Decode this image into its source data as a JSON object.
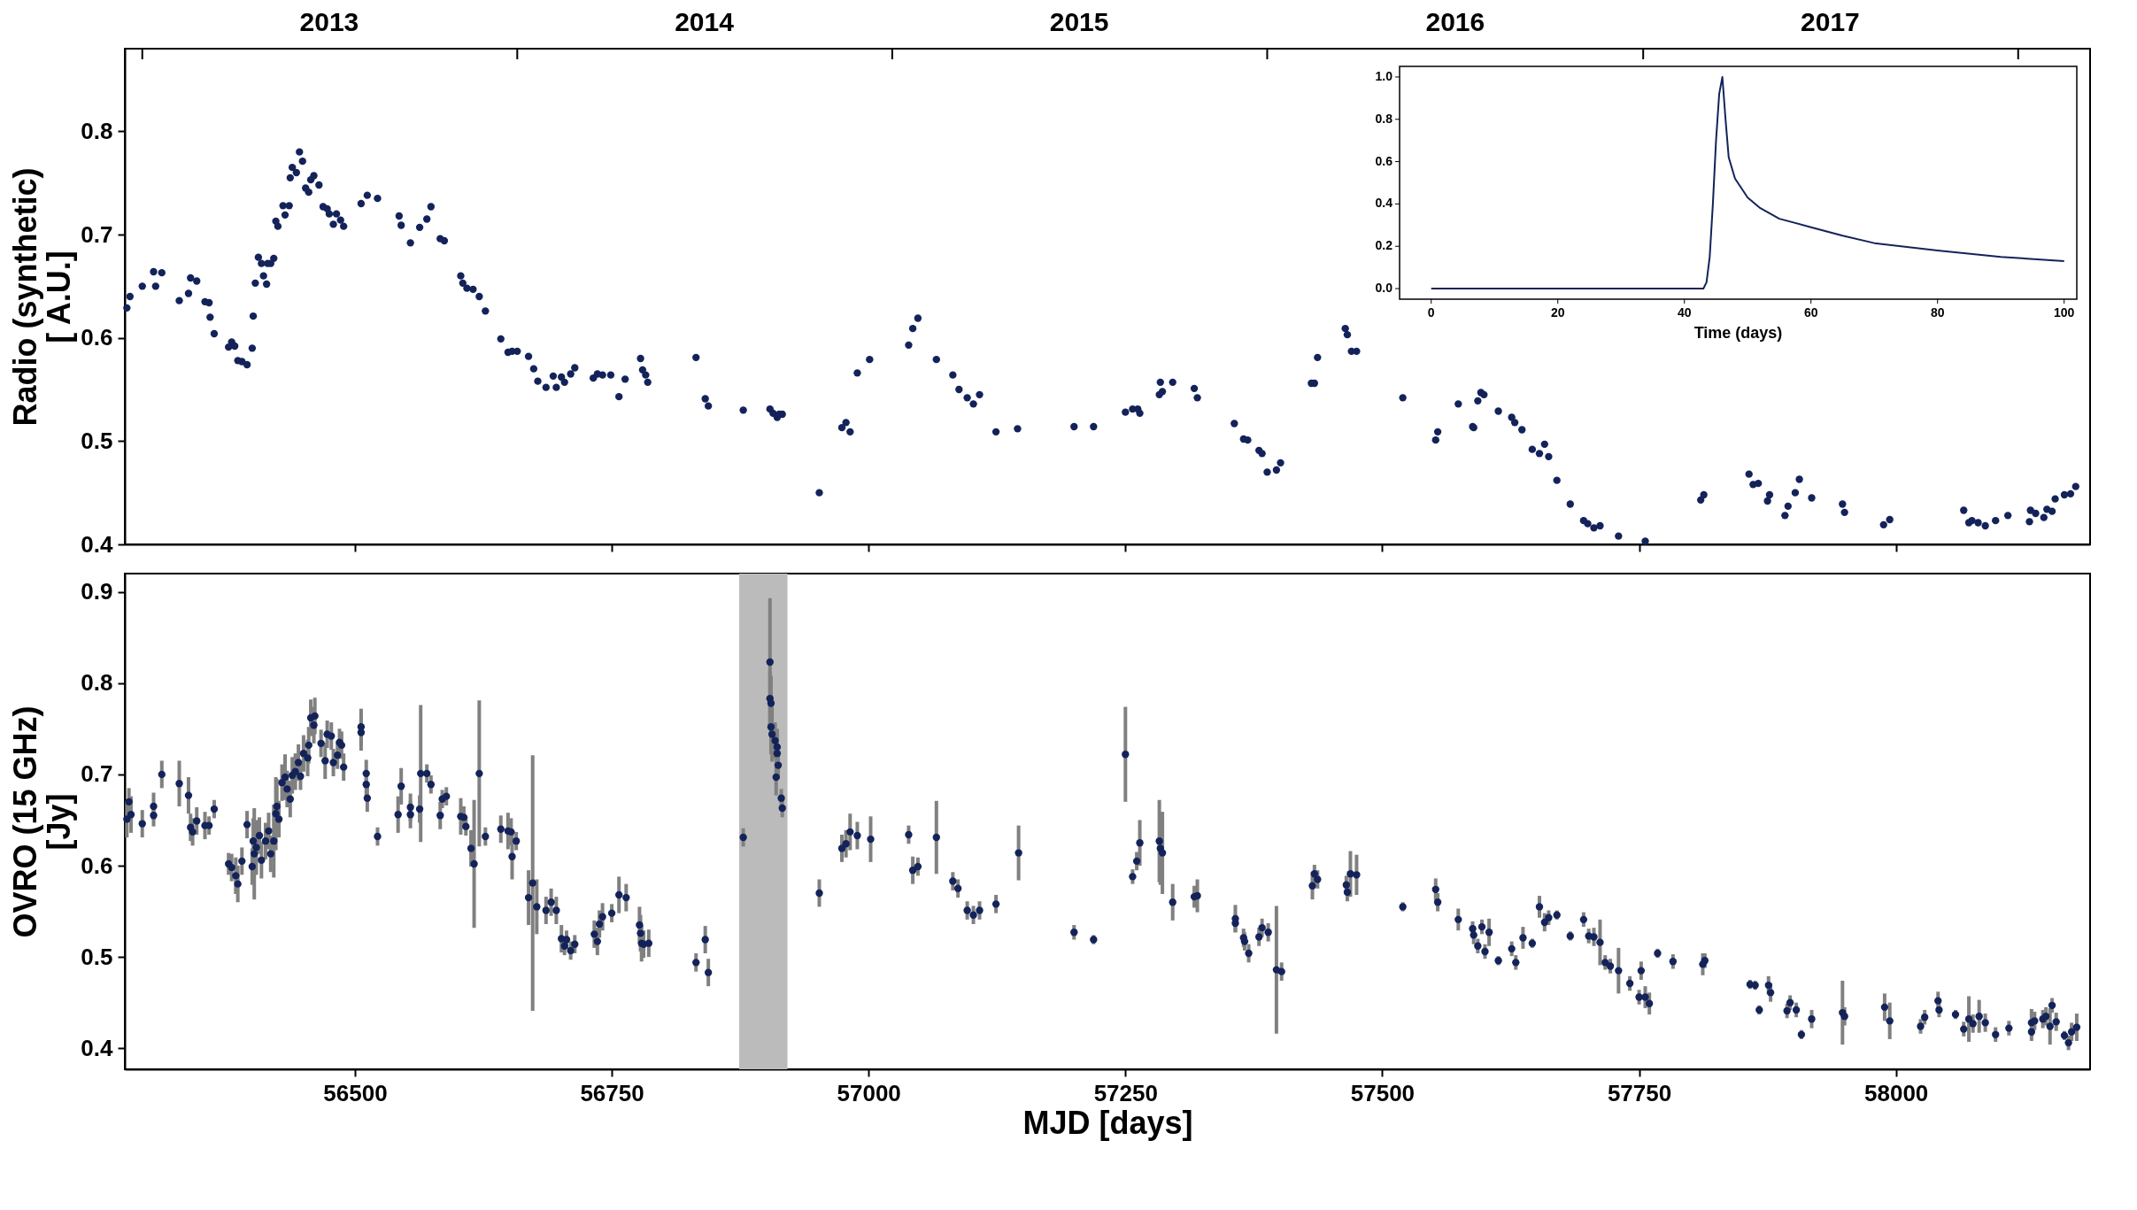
{
  "chart_data": [
    {
      "type": "scatter",
      "ylabel": "Radio (synthetic)\n[ A.U.]",
      "marker": "circle",
      "grid": false,
      "tick_labels": "y",
      "xlim": [
        56276,
        58189
      ],
      "ylim": [
        0.4,
        0.88
      ],
      "yticks": [
        0.4,
        0.5,
        0.6,
        0.7,
        0.8
      ],
      "xticks": [
        {
          "value": 56500,
          "label": null
        },
        {
          "value": 56750,
          "label": null
        },
        {
          "value": 57000,
          "label": null
        },
        {
          "value": 57250,
          "label": null
        },
        {
          "value": 57500,
          "label": null
        },
        {
          "value": 57750,
          "label": null
        },
        {
          "value": 58000,
          "label": null
        }
      ],
      "x2lim": [
        "2012-12-15",
        "2018-03-12"
      ],
      "x2ticks": [
        {
          "value": "2013-01-01",
          "label": null
        },
        {
          "value": "2013-07-02",
          "label": "2013"
        },
        {
          "value": "2014-01-01",
          "label": null
        },
        {
          "value": "2014-07-02",
          "label": "2014"
        },
        {
          "value": "2015-01-01",
          "label": null
        },
        {
          "value": "2015-07-02",
          "label": "2015"
        },
        {
          "value": "2016-01-01",
          "label": null
        },
        {
          "value": "2016-07-02",
          "label": "2016"
        },
        {
          "value": "2017-01-01",
          "label": null
        },
        {
          "value": "2017-07-02",
          "label": "2017"
        },
        {
          "value": "2018-01-01",
          "label": null
        }
      ],
      "x": [
        56278,
        56281,
        56293,
        56304,
        56306,
        56312,
        56329,
        56338,
        56340,
        56346,
        56354,
        56358,
        56359,
        56363,
        56377,
        56380,
        56383,
        56386,
        56390,
        56395,
        56400,
        56401,
        56403,
        56406,
        56409,
        56411,
        56414,
        56415,
        56418,
        56421,
        56423,
        56425,
        56430,
        56432,
        56436,
        56437,
        56439,
        56443,
        56446,
        56449,
        56452,
        56455,
        56457,
        56460,
        56465,
        56469,
        56473,
        56475,
        56479,
        56482,
        56486,
        56489,
        56506,
        56512,
        56522,
        56543,
        56545,
        56554,
        56563,
        56570,
        56574,
        56583,
        56587,
        56603,
        56605,
        56609,
        56615,
        56621,
        56627,
        56642,
        56649,
        56653,
        56658,
        56669,
        56674,
        56678,
        56686,
        56693,
        56696,
        56701,
        56704,
        56710,
        56714,
        56732,
        56736,
        56741,
        56749,
        56757,
        56763,
        56778,
        56780,
        56783,
        56785,
        56832,
        56841,
        56844,
        56878,
        56904,
        56907,
        56911,
        56913,
        56916,
        56952,
        56974,
        56978,
        56982,
        56989,
        57001,
        57039,
        57043,
        57048,
        57066,
        57082,
        57088,
        57096,
        57102,
        57108,
        57124,
        57145,
        57200,
        57219,
        57250,
        57257,
        57262,
        57264,
        57283,
        57286,
        57284,
        57296,
        57317,
        57320,
        57356,
        57365,
        57369,
        57380,
        57383,
        57388,
        57397,
        57401,
        57431,
        57434,
        57437,
        57464,
        57466,
        57470,
        57475,
        57520,
        57552,
        57554,
        57574,
        57588,
        57589,
        57593,
        57596,
        57599,
        57613,
        57626,
        57629,
        57636,
        57646,
        57653,
        57658,
        57662,
        57670,
        57683,
        57696,
        57700,
        57706,
        57712,
        57730,
        57756,
        57810,
        57813,
        57857,
        57861,
        57866,
        57875,
        57877,
        57892,
        57895,
        57902,
        57906,
        57918,
        57948,
        57950,
        57988,
        57994,
        58066,
        58071,
        58074,
        58080,
        58087,
        58097,
        58109,
        58130,
        58131,
        58136,
        58144,
        58147,
        58152,
        58155,
        58164,
        58170,
        58175
      ],
      "series": [
        {
          "color": "#13235a",
          "values": [
            0.629,
            0.64,
            0.65,
            0.664,
            0.65,
            0.663,
            0.636,
            0.643,
            0.658,
            0.655,
            0.635,
            0.634,
            0.62,
            0.604,
            0.591,
            0.596,
            0.592,
            0.578,
            0.577,
            0.574,
            0.59,
            0.621,
            0.653,
            0.678,
            0.672,
            0.66,
            0.652,
            0.672,
            0.672,
            0.677,
            0.713,
            0.708,
            0.728,
            0.719,
            0.728,
            0.755,
            0.765,
            0.76,
            0.78,
            0.771,
            0.745,
            0.741,
            0.753,
            0.757,
            0.748,
            0.727,
            0.725,
            0.72,
            0.71,
            0.72,
            0.714,
            0.708,
            0.73,
            0.738,
            0.735,
            0.718,
            0.709,
            0.692,
            0.707,
            0.715,
            0.727,
            0.696,
            0.694,
            0.66,
            0.653,
            0.648,
            0.647,
            0.64,
            0.626,
            0.599,
            0.586,
            0.587,
            0.587,
            0.582,
            0.57,
            0.558,
            0.552,
            0.563,
            0.552,
            0.562,
            0.557,
            0.565,
            0.571,
            0.561,
            0.565,
            0.564,
            0.564,
            0.543,
            0.56,
            0.58,
            0.569,
            0.564,
            0.557,
            0.581,
            0.541,
            0.534,
            0.53,
            0.531,
            0.527,
            0.523,
            0.526,
            0.526,
            0.45,
            0.513,
            0.518,
            0.509,
            0.566,
            0.579,
            0.593,
            0.609,
            0.619,
            0.579,
            0.564,
            0.55,
            0.542,
            0.536,
            0.545,
            0.509,
            0.512,
            0.514,
            0.514,
            0.528,
            0.531,
            0.531,
            0.527,
            0.545,
            0.548,
            0.557,
            0.557,
            0.551,
            0.542,
            0.517,
            0.502,
            0.501,
            0.491,
            0.488,
            0.47,
            0.472,
            0.479,
            0.556,
            0.556,
            0.581,
            0.609,
            0.603,
            0.587,
            0.587,
            0.542,
            0.501,
            0.509,
            0.536,
            0.514,
            0.513,
            0.539,
            0.547,
            0.545,
            0.529,
            0.523,
            0.518,
            0.511,
            0.492,
            0.488,
            0.497,
            0.485,
            0.462,
            0.439,
            0.423,
            0.42,
            0.416,
            0.418,
            0.408,
            0.403,
            0.443,
            0.448,
            0.468,
            0.458,
            0.459,
            0.442,
            0.448,
            0.428,
            0.437,
            0.45,
            0.463,
            0.445,
            0.439,
            0.431,
            0.419,
            0.424,
            0.433,
            0.421,
            0.423,
            0.421,
            0.418,
            0.423,
            0.428,
            0.422,
            0.433,
            0.43,
            0.426,
            0.434,
            0.432,
            0.444,
            0.448,
            0.449,
            0.456
          ]
        }
      ]
    },
    {
      "type": "scatter",
      "xlabel": "MJD [days]",
      "ylabel": "OVRO (15 GHz)\n[Jy]",
      "marker": "circle",
      "grid": false,
      "xlim": [
        56276,
        58189
      ],
      "ylim": [
        0.377,
        0.92
      ],
      "xticks": [
        56500,
        56750,
        57000,
        57250,
        57500,
        57750,
        58000
      ],
      "yticks": [
        0.4,
        0.5,
        0.6,
        0.7,
        0.8,
        0.9
      ],
      "bands": [
        {
          "axis": "x",
          "from": 56874,
          "to": 56921,
          "color": "#bbbbbb"
        }
      ],
      "x": [
        56278,
        56280,
        56282,
        56293,
        56304,
        56304,
        56312,
        56329,
        56338,
        56340,
        56342,
        56346,
        56354,
        56358,
        56363,
        56377,
        56380,
        56384,
        56386,
        56390,
        56395,
        56400,
        56401,
        56402,
        56404,
        56407,
        56409,
        56413,
        56416,
        56418,
        56421,
        56423,
        56424,
        56426,
        56429,
        56432,
        56434,
        56437,
        56439,
        56442,
        56445,
        56447,
        56450,
        56454,
        56455,
        56457,
        56460,
        56461,
        56467,
        56471,
        56473,
        56477,
        56479,
        56483,
        56485,
        56487,
        56489,
        56506,
        56506,
        56511,
        56511,
        56512,
        56522,
        56542,
        56545,
        56554,
        56554,
        56563,
        56564,
        56570,
        56574,
        56583,
        56585,
        56589,
        56603,
        56606,
        56608,
        56613,
        56616,
        56621,
        56627,
        56642,
        56649,
        56652,
        56653,
        56657,
        56669,
        56673,
        56677,
        56686,
        56691,
        56696,
        56701,
        56704,
        56706,
        56710,
        56714,
        56733,
        56736,
        56738,
        56741,
        56750,
        56757,
        56764,
        56777,
        56778,
        56779,
        56781,
        56786,
        56832,
        56841,
        56844,
        56878,
        56904,
        56904,
        56905,
        56905,
        56906,
        56909,
        56911,
        56911,
        56912,
        56910,
        56915,
        56916,
        56952,
        56974,
        56978,
        56982,
        56989,
        57002,
        57039,
        57043,
        57048,
        57066,
        57082,
        57087,
        57096,
        57102,
        57108,
        57124,
        57146,
        57200,
        57219,
        57250,
        57257,
        57261,
        57264,
        57283,
        57284,
        57286,
        57296,
        57317,
        57320,
        57357,
        57357,
        57365,
        57366,
        57370,
        57380,
        57383,
        57389,
        57397,
        57402,
        57432,
        57434,
        57437,
        57465,
        57466,
        57469,
        57475,
        57520,
        57552,
        57554,
        57574,
        57588,
        57589,
        57593,
        57597,
        57600,
        57604,
        57613,
        57626,
        57630,
        57637,
        57646,
        57653,
        57658,
        57662,
        57670,
        57683,
        57696,
        57701,
        57706,
        57712,
        57717,
        57722,
        57730,
        57741,
        57750,
        57752,
        57756,
        57760,
        57768,
        57783,
        57812,
        57814,
        57858,
        57863,
        57867,
        57876,
        57878,
        57894,
        57897,
        57903,
        57908,
        57918,
        57948,
        57950,
        57989,
        57994,
        58024,
        58028,
        58041,
        58042,
        58058,
        58066,
        58071,
        58075,
        58081,
        58087,
        58097,
        58110,
        58132,
        58132,
        58135,
        58143,
        58146,
        58150,
        58152,
        58156,
        58164,
        58168,
        58171,
        58176
      ],
      "series": [
        {
          "color": "#13235a",
          "values": [
            0.651,
            0.67,
            0.656,
            0.646,
            0.665,
            0.655,
            0.7,
            0.69,
            0.677,
            0.642,
            0.637,
            0.649,
            0.644,
            0.644,
            0.662,
            0.602,
            0.598,
            0.589,
            0.58,
            0.605,
            0.645,
            0.599,
            0.627,
            0.613,
            0.62,
            0.633,
            0.606,
            0.627,
            0.638,
            0.613,
            0.627,
            0.657,
            0.665,
            0.651,
            0.691,
            0.697,
            0.684,
            0.673,
            0.699,
            0.703,
            0.713,
            0.698,
            0.723,
            0.718,
            0.732,
            0.762,
            0.754,
            0.764,
            0.734,
            0.715,
            0.744,
            0.742,
            0.713,
            0.721,
            0.735,
            0.732,
            0.708,
            0.752,
            0.746,
            0.701,
            0.689,
            0.674,
            0.632,
            0.656,
            0.687,
            0.664,
            0.656,
            0.662,
            0.701,
            0.701,
            0.689,
            0.655,
            0.673,
            0.676,
            0.654,
            0.653,
            0.643,
            0.619,
            0.602,
            0.701,
            0.632,
            0.64,
            0.638,
            0.637,
            0.61,
            0.627,
            0.565,
            0.581,
            0.555,
            0.551,
            0.56,
            0.551,
            0.52,
            0.512,
            0.519,
            0.507,
            0.514,
            0.525,
            0.517,
            0.536,
            0.544,
            0.548,
            0.568,
            0.565,
            0.535,
            0.526,
            0.515,
            0.514,
            0.515,
            0.494,
            0.519,
            0.483,
            0.631,
            0.823,
            0.783,
            0.778,
            0.752,
            0.744,
            0.737,
            0.73,
            0.723,
            0.71,
            0.697,
            0.674,
            0.663,
            0.57,
            0.619,
            0.624,
            0.637,
            0.633,
            0.629,
            0.634,
            0.595,
            0.599,
            0.631,
            0.583,
            0.575,
            0.551,
            0.546,
            0.551,
            0.558,
            0.614,
            0.527,
            0.519,
            0.722,
            0.588,
            0.605,
            0.625,
            0.627,
            0.619,
            0.614,
            0.56,
            0.566,
            0.567,
            0.542,
            0.537,
            0.521,
            0.517,
            0.504,
            0.522,
            0.532,
            0.527,
            0.486,
            0.484,
            0.578,
            0.591,
            0.585,
            0.579,
            0.571,
            0.591,
            0.59,
            0.555,
            0.574,
            0.56,
            0.541,
            0.531,
            0.524,
            0.512,
            0.533,
            0.506,
            0.527,
            0.496,
            0.509,
            0.494,
            0.521,
            0.515,
            0.555,
            0.538,
            0.543,
            0.546,
            0.523,
            0.541,
            0.523,
            0.522,
            0.516,
            0.494,
            0.49,
            0.485,
            0.471,
            0.456,
            0.485,
            0.456,
            0.449,
            0.504,
            0.495,
            0.492,
            0.496,
            0.47,
            0.469,
            0.442,
            0.469,
            0.461,
            0.441,
            0.45,
            0.442,
            0.415,
            0.432,
            0.439,
            0.435,
            0.445,
            0.43,
            0.424,
            0.434,
            0.452,
            0.442,
            0.437,
            0.421,
            0.432,
            0.427,
            0.435,
            0.428,
            0.415,
            0.422,
            0.418,
            0.428,
            0.43,
            0.432,
            0.435,
            0.424,
            0.447,
            0.429,
            0.414,
            0.406,
            0.418,
            0.423
          ],
          "errors": [
            0.02,
            0.015,
            0.02,
            0.015,
            0.015,
            0.012,
            0.015,
            0.025,
            0.02,
            0.015,
            0.015,
            0.015,
            0.015,
            0.01,
            0.01,
            0.012,
            0.015,
            0.02,
            0.02,
            0.015,
            0.015,
            0.02,
            0.025,
            0.05,
            0.03,
            0.02,
            0.02,
            0.02,
            0.02,
            0.02,
            0.04,
            0.04,
            0.03,
            0.02,
            0.02,
            0.025,
            0.02,
            0.02,
            0.02,
            0.02,
            0.02,
            0.015,
            0.02,
            0.02,
            0.02,
            0.02,
            0.02,
            0.02,
            0.015,
            0.02,
            0.015,
            0.015,
            0.015,
            0.015,
            0.015,
            0.015,
            0.015,
            0.02,
            0.02,
            0.015,
            0.015,
            0.015,
            0.01,
            0.02,
            0.02,
            0.015,
            0.015,
            0.015,
            0.075,
            0.01,
            0.01,
            0.015,
            0.01,
            0.01,
            0.02,
            0.012,
            0.01,
            0.02,
            0.07,
            0.08,
            0.01,
            0.015,
            0.02,
            0.015,
            0.025,
            0.01,
            0.03,
            0.14,
            0.03,
            0.015,
            0.015,
            0.015,
            0.015,
            0.01,
            0.01,
            0.01,
            0.01,
            0.015,
            0.015,
            0.015,
            0.015,
            0.01,
            0.02,
            0.015,
            0.02,
            0.02,
            0.02,
            0.015,
            0.015,
            0.01,
            0.015,
            0.015,
            0.01,
            0.07,
            0.03,
            0.03,
            0.03,
            0.03,
            0.02,
            0.02,
            0.02,
            0.015,
            0.02,
            0.01,
            0.01,
            0.015,
            0.015,
            0.015,
            0.02,
            0.015,
            0.025,
            0.01,
            0.015,
            0.01,
            0.04,
            0.01,
            0.01,
            0.01,
            0.01,
            0.01,
            0.01,
            0.03,
            0.008,
            0.005,
            0.052,
            0.008,
            0.01,
            0.025,
            0.045,
            0.04,
            0.045,
            0.02,
            0.012,
            0.018,
            0.015,
            0.01,
            0.01,
            0.01,
            0.01,
            0.01,
            0.01,
            0.01,
            0.07,
            0.01,
            0.015,
            0.01,
            0.01,
            0.01,
            0.01,
            0.025,
            0.022,
            0.005,
            0.012,
            0.01,
            0.012,
            0.008,
            0.01,
            0.008,
            0.008,
            0.008,
            0.015,
            0.005,
            0.008,
            0.008,
            0.012,
            0.005,
            0.012,
            0.01,
            0.008,
            0.005,
            0.005,
            0.008,
            0.008,
            0.01,
            0.025,
            0.008,
            0.008,
            0.025,
            0.008,
            0.008,
            0.01,
            0.012,
            0.012,
            0.005,
            0.008,
            0.012,
            0.008,
            0.005,
            0.005,
            0.005,
            0.01,
            0.01,
            0.008,
            0.008,
            0.008,
            0.005,
            0.01,
            0.035,
            0.01,
            0.015,
            0.02,
            0.008,
            0.008,
            0.01,
            0.008,
            0.005,
            0.008,
            0.025,
            0.01,
            0.018,
            0.01,
            0.008,
            0.008,
            0.01,
            0.015,
            0.01,
            0.01,
            0.01,
            0.02,
            0.008,
            0.01,
            0.005,
            0.008,
            0.01,
            0.015
          ]
        }
      ]
    },
    {
      "type": "line",
      "xlabel": "Time (days)",
      "xlim": [
        -5,
        102
      ],
      "ylim": [
        -0.05,
        1.05
      ],
      "xticks": [
        0,
        20,
        40,
        60,
        80,
        100
      ],
      "yticks": [
        {
          "value": 0,
          "label": "0.0"
        },
        0.2,
        0.4,
        0.6,
        0.8,
        {
          "value": 1,
          "label": "1.0"
        }
      ],
      "x": [
        0,
        43,
        43.5,
        44,
        44.5,
        45,
        45.5,
        46,
        46.5,
        47,
        48,
        50,
        52,
        55,
        60,
        65,
        70,
        80,
        90,
        100
      ],
      "series": [
        {
          "color": "#13235a",
          "values": [
            0,
            0,
            0.03,
            0.15,
            0.4,
            0.7,
            0.92,
            1.0,
            0.8,
            0.62,
            0.52,
            0.43,
            0.38,
            0.33,
            0.29,
            0.25,
            0.215,
            0.18,
            0.15,
            0.13
          ]
        }
      ]
    }
  ]
}
